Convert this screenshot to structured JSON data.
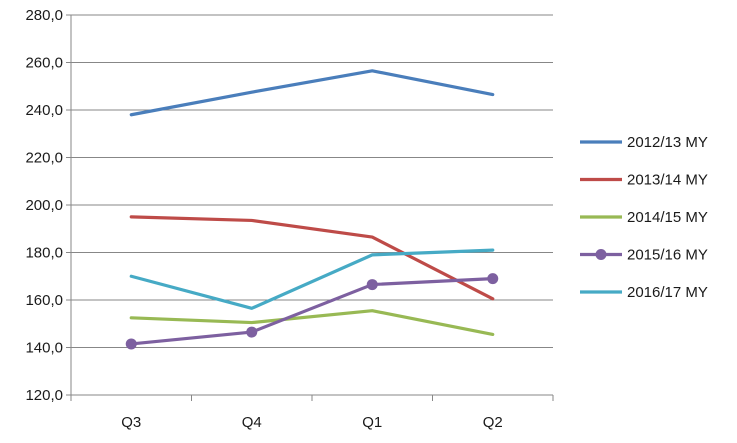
{
  "chart_data": {
    "type": "line",
    "title": "",
    "xlabel": "",
    "ylabel": "",
    "categories": [
      "Q3",
      "Q4",
      "Q1",
      "Q2"
    ],
    "ylim": [
      120,
      280
    ],
    "yticks": [
      "120,0",
      "140,0",
      "160,0",
      "180,0",
      "200,0",
      "220,0",
      "240,0",
      "260,0",
      "280,0"
    ],
    "grid": "horizontal",
    "legend_position": "right",
    "series": [
      {
        "name": "2012/13 MY",
        "color": "#4a7ebb",
        "marker": false,
        "values": [
          238.0,
          247.5,
          256.5,
          246.5
        ]
      },
      {
        "name": "2013/14 MY",
        "color": "#be4b48",
        "marker": false,
        "values": [
          195.0,
          193.5,
          186.5,
          160.5
        ]
      },
      {
        "name": "2014/15 MY",
        "color": "#98b954",
        "marker": false,
        "values": [
          152.5,
          150.5,
          155.5,
          145.5
        ]
      },
      {
        "name": "2015/16 MY",
        "color": "#7d60a0",
        "marker": true,
        "values": [
          141.5,
          146.5,
          166.5,
          169.0
        ]
      },
      {
        "name": "2016/17 MY",
        "color": "#46aac5",
        "marker": false,
        "values": [
          170.0,
          156.5,
          179.0,
          181.0
        ]
      }
    ]
  }
}
